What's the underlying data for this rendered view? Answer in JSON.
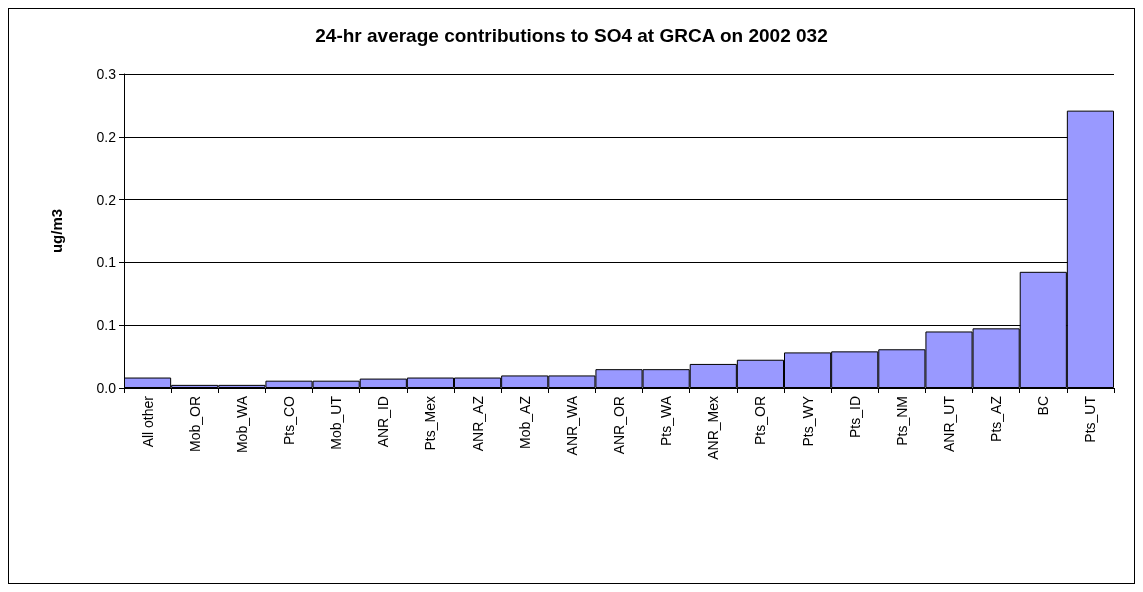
{
  "chart_data": {
    "type": "bar",
    "title": "24-hr average contributions to SO4 at GRCA on 2002 032",
    "ylabel": "ug/m3",
    "categories": [
      "All other",
      "Mob_OR",
      "Mob_WA",
      "Pts_CO",
      "Mob_UT",
      "ANR_ID",
      "Pts_Mex",
      "ANR_AZ",
      "Mob_AZ",
      "ANR_WA",
      "ANR_OR",
      "Pts_WA",
      "ANR_Mex",
      "Pts_OR",
      "Pts_WY",
      "Pts_ID",
      "Pts_NM",
      "ANR_UT",
      "Pts_AZ",
      "BC",
      "Pts_UT"
    ],
    "values": [
      0.01,
      0.003,
      0.003,
      0.007,
      0.007,
      0.009,
      0.01,
      0.01,
      0.012,
      0.012,
      0.018,
      0.018,
      0.023,
      0.027,
      0.034,
      0.035,
      0.037,
      0.054,
      0.057,
      0.111,
      0.265
    ],
    "color": "#9999ff",
    "ylim": [
      0,
      0.3
    ],
    "yticks": [
      {
        "value": 0,
        "label": "0.0"
      },
      {
        "value": 0.06,
        "label": "0.1"
      },
      {
        "value": 0.12,
        "label": "0.1"
      },
      {
        "value": 0.18,
        "label": "0.2"
      },
      {
        "value": 0.24,
        "label": "0.2"
      },
      {
        "value": 0.3,
        "label": "0.3"
      }
    ],
    "grid": "y"
  }
}
